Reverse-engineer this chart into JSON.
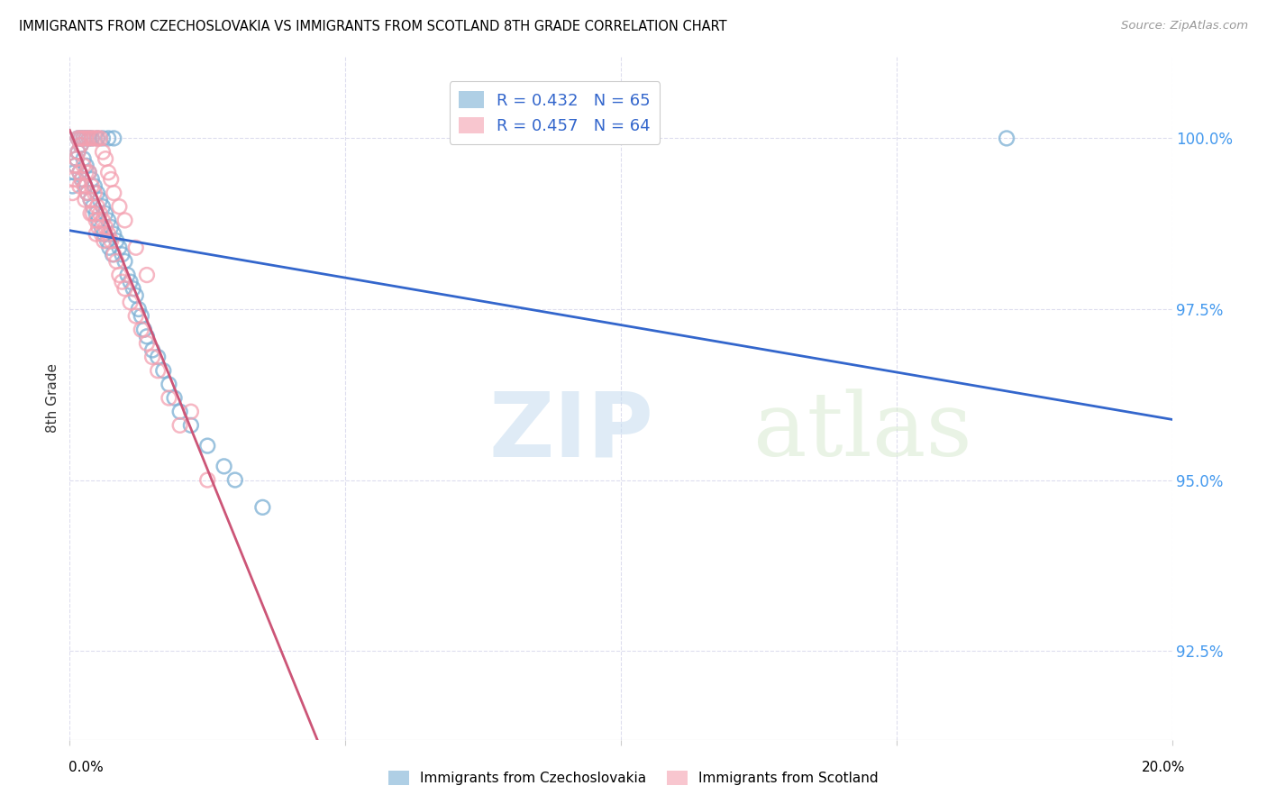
{
  "title": "IMMIGRANTS FROM CZECHOSLOVAKIA VS IMMIGRANTS FROM SCOTLAND 8TH GRADE CORRELATION CHART",
  "source": "Source: ZipAtlas.com",
  "ylabel": "8th Grade",
  "y_ticks": [
    92.5,
    95.0,
    97.5,
    100.0
  ],
  "y_tick_labels": [
    "92.5%",
    "95.0%",
    "97.5%",
    "100.0%"
  ],
  "xlim": [
    0.0,
    20.0
  ],
  "ylim": [
    91.2,
    101.2
  ],
  "R_blue": 0.432,
  "N_blue": 65,
  "R_pink": 0.457,
  "N_pink": 64,
  "blue_color": "#7BAFD4",
  "pink_color": "#F4A0B0",
  "line_blue": "#3366CC",
  "line_pink": "#CC5577",
  "legend_label_blue": "Immigrants from Czechoslovakia",
  "legend_label_pink": "Immigrants from Scotland",
  "blue_x": [
    0.05,
    0.08,
    0.1,
    0.12,
    0.15,
    0.18,
    0.2,
    0.22,
    0.25,
    0.28,
    0.3,
    0.32,
    0.35,
    0.38,
    0.4,
    0.42,
    0.45,
    0.48,
    0.5,
    0.52,
    0.55,
    0.58,
    0.6,
    0.62,
    0.65,
    0.68,
    0.7,
    0.72,
    0.75,
    0.78,
    0.8,
    0.85,
    0.9,
    0.95,
    1.0,
    1.05,
    1.1,
    1.15,
    1.2,
    1.25,
    1.3,
    1.35,
    1.4,
    1.5,
    1.6,
    1.7,
    1.8,
    1.9,
    2.0,
    2.2,
    2.5,
    2.8,
    3.0,
    3.5,
    0.15,
    0.2,
    0.25,
    0.3,
    0.35,
    0.4,
    0.5,
    0.6,
    0.7,
    0.8,
    17.0
  ],
  "blue_y": [
    99.3,
    99.5,
    99.6,
    99.7,
    99.8,
    99.5,
    99.9,
    99.4,
    99.7,
    99.3,
    99.6,
    99.2,
    99.5,
    99.1,
    99.4,
    99.0,
    99.3,
    98.9,
    99.2,
    98.8,
    99.1,
    98.7,
    99.0,
    98.6,
    98.9,
    98.5,
    98.8,
    98.4,
    98.7,
    98.3,
    98.6,
    98.5,
    98.4,
    98.3,
    98.2,
    98.0,
    97.9,
    97.8,
    97.7,
    97.5,
    97.4,
    97.2,
    97.1,
    96.9,
    96.8,
    96.6,
    96.4,
    96.2,
    96.0,
    95.8,
    95.5,
    95.2,
    95.0,
    94.6,
    100.0,
    100.0,
    100.0,
    100.0,
    100.0,
    100.0,
    100.0,
    100.0,
    100.0,
    100.0,
    100.0
  ],
  "pink_x": [
    0.05,
    0.08,
    0.1,
    0.12,
    0.15,
    0.18,
    0.2,
    0.22,
    0.25,
    0.28,
    0.3,
    0.32,
    0.35,
    0.38,
    0.4,
    0.42,
    0.45,
    0.48,
    0.5,
    0.52,
    0.55,
    0.58,
    0.6,
    0.62,
    0.65,
    0.7,
    0.75,
    0.8,
    0.85,
    0.9,
    0.95,
    1.0,
    1.1,
    1.2,
    1.3,
    1.4,
    1.5,
    1.6,
    1.8,
    2.0,
    2.5,
    0.15,
    0.2,
    0.25,
    0.3,
    0.35,
    0.4,
    0.45,
    0.5,
    0.55,
    0.6,
    0.65,
    0.7,
    0.75,
    0.8,
    0.9,
    1.0,
    1.2,
    1.4,
    2.2,
    0.18,
    0.28,
    0.38,
    0.48
  ],
  "pink_y": [
    99.2,
    99.4,
    99.6,
    99.7,
    99.8,
    99.5,
    99.9,
    99.4,
    99.6,
    99.3,
    99.5,
    99.2,
    99.5,
    99.1,
    99.3,
    98.9,
    99.2,
    98.8,
    99.0,
    98.7,
    98.9,
    98.6,
    98.8,
    98.5,
    98.7,
    98.6,
    98.5,
    98.3,
    98.2,
    98.0,
    97.9,
    97.8,
    97.6,
    97.4,
    97.2,
    97.0,
    96.8,
    96.6,
    96.2,
    95.8,
    95.0,
    100.0,
    100.0,
    100.0,
    100.0,
    100.0,
    100.0,
    100.0,
    100.0,
    100.0,
    99.8,
    99.7,
    99.5,
    99.4,
    99.2,
    99.0,
    98.8,
    98.4,
    98.0,
    96.0,
    99.3,
    99.1,
    98.9,
    98.6
  ]
}
